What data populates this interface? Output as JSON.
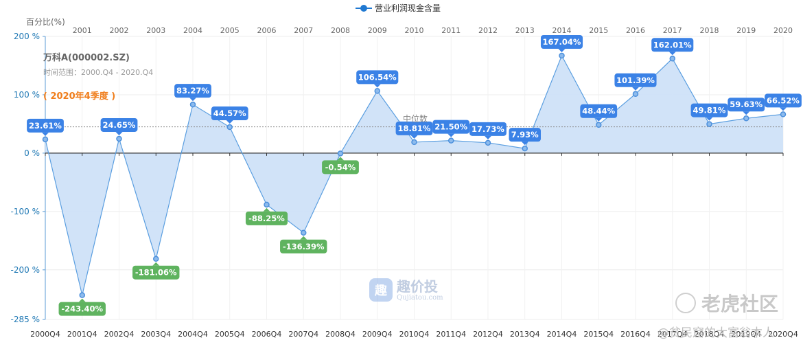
{
  "legend": {
    "label": "营业利润现金含量"
  },
  "y_axis_title": "百分比(%)",
  "company": {
    "name": "万科A(000002.SZ)",
    "range": "时间范围：2000.Q4 - 2020.Q4",
    "quarter": "( 2020年4季度 )"
  },
  "median": {
    "label": "中位数",
    "value": 45
  },
  "watermarks": {
    "logo_mark": "趣",
    "logo_text": "趣价投",
    "logo_subtext": "Qujiatou.com",
    "community": "老虎社区",
    "author": "@贫民窟的大富翁本人"
  },
  "colors": {
    "line": "#5a9ee0",
    "area": "#cfe2f8",
    "point": "#4b8fdc",
    "positive_label": "#3b82e6",
    "negative_label": "#5fb35f",
    "axis": "#5b9bd5"
  },
  "chart_data": {
    "type": "area",
    "series": [
      {
        "name": "营业利润现金含量",
        "values": [
          23.61,
          -243.4,
          24.65,
          -181.06,
          83.27,
          44.57,
          -88.25,
          -136.39,
          -0.54,
          106.54,
          18.81,
          21.5,
          17.73,
          7.93,
          167.04,
          48.44,
          101.39,
          162.01,
          49.81,
          59.63,
          66.52
        ]
      }
    ],
    "categories": [
      "2000Q4",
      "2001Q4",
      "2002Q4",
      "2003Q4",
      "2004Q4",
      "2005Q4",
      "2006Q4",
      "2007Q4",
      "2008Q4",
      "2009Q4",
      "2010Q4",
      "2011Q4",
      "2012Q4",
      "2013Q4",
      "2014Q4",
      "2015Q4",
      "2016Q4",
      "2017Q4",
      "2018Q4",
      "2019Q4",
      "2020Q4"
    ],
    "top_categories": [
      "2001",
      "2002",
      "2003",
      "2004",
      "2005",
      "2006",
      "2007",
      "2008",
      "2009",
      "2010",
      "2011",
      "2012",
      "2013",
      "2014",
      "2015",
      "2016",
      "2017",
      "2018",
      "2019",
      "2020"
    ],
    "data_labels": [
      "23.61%",
      "-243.40%",
      "24.65%",
      "-181.06%",
      "83.27%",
      "44.57%",
      "-88.25%",
      "-136.39%",
      "-0.54%",
      "106.54%",
      "18.81%",
      "21.50%",
      "17.73%",
      "7.93%",
      "167.04%",
      "48.44%",
      "101.39%",
      "162.01%",
      "49.81%",
      "59.63%",
      "66.52%"
    ],
    "y_ticks": [
      200,
      100,
      0,
      -100,
      -200,
      -285
    ],
    "y_tick_labels": [
      "200 %",
      "100 %",
      "0 %",
      "-100 %",
      "-200 %",
      "-285 %"
    ],
    "ylim": [
      -285,
      200
    ],
    "grid": true
  }
}
